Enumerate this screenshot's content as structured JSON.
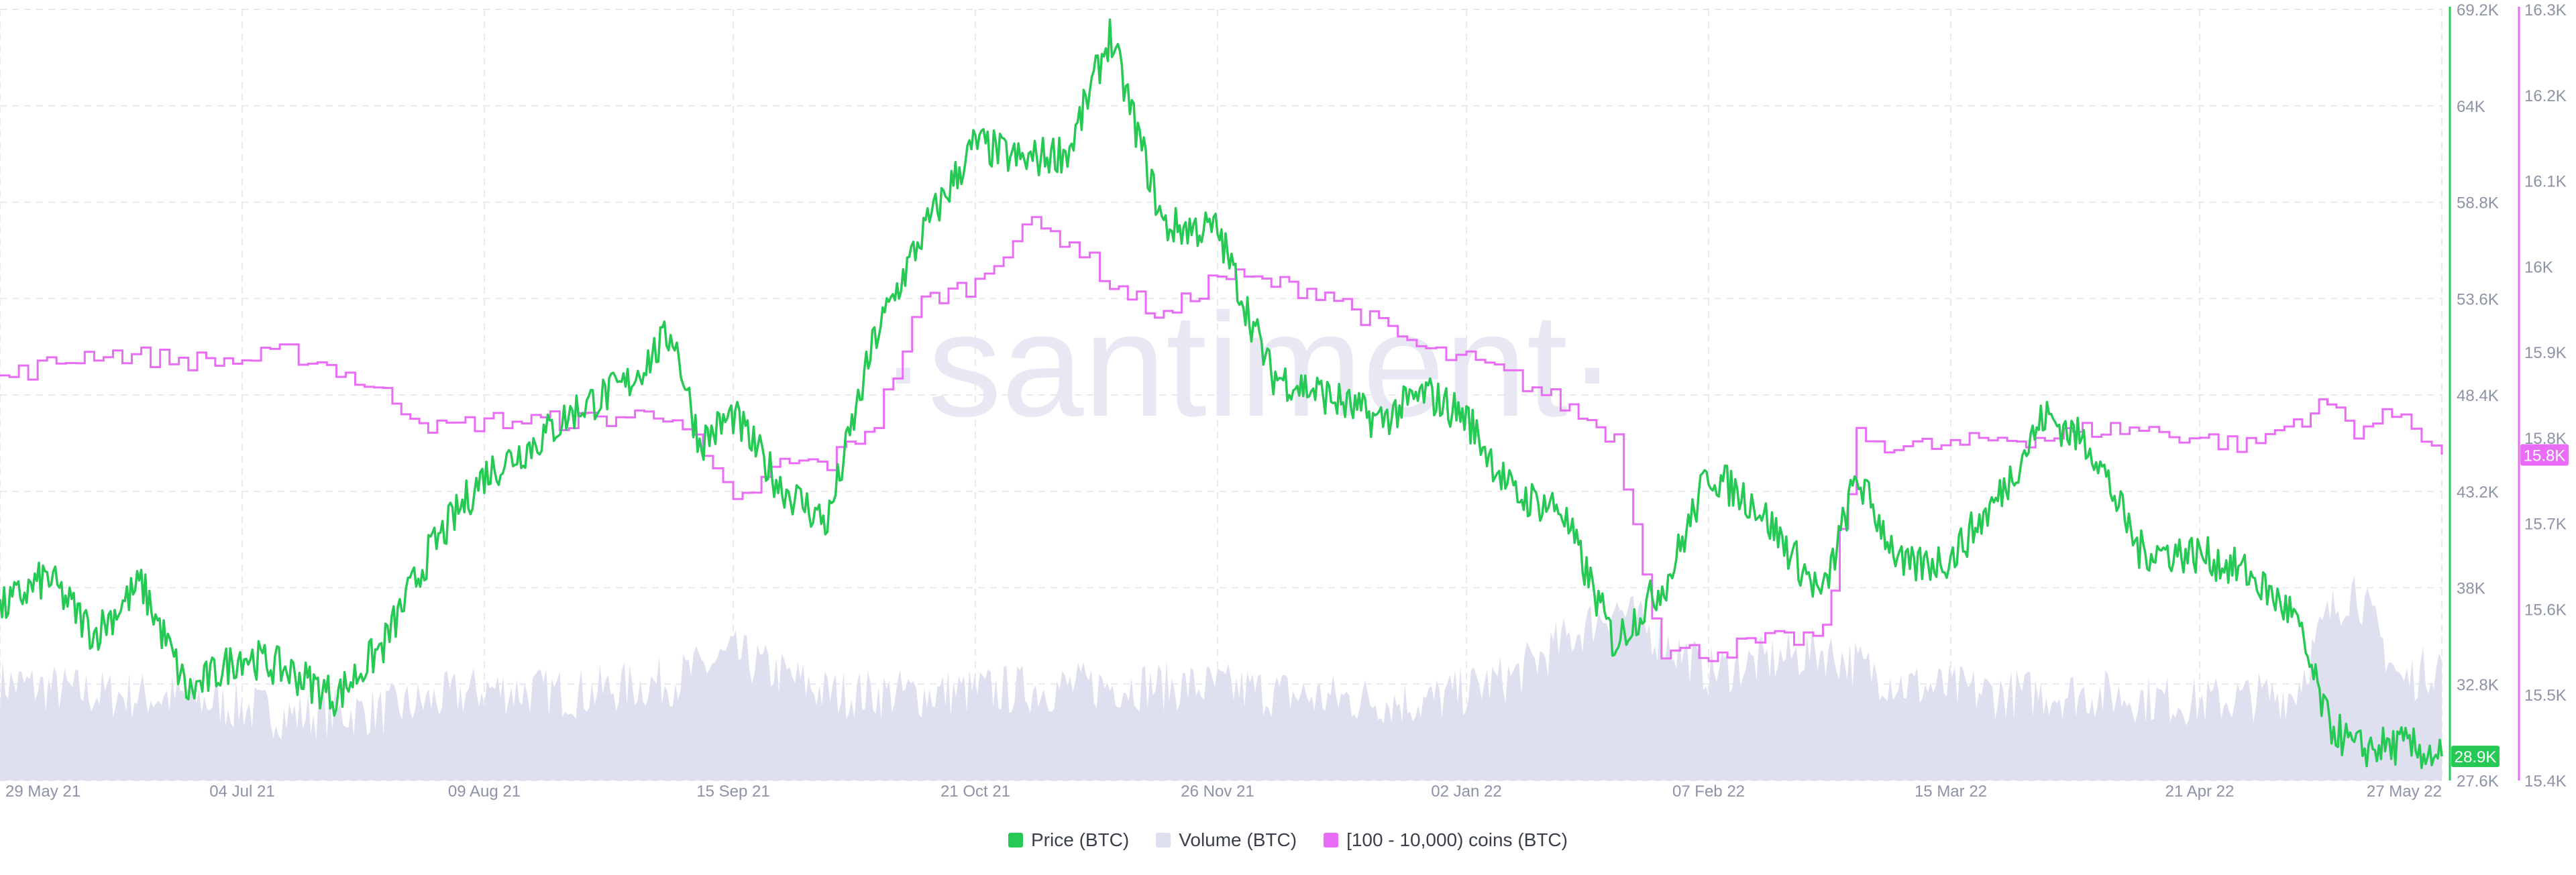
{
  "watermark": "·santiment·",
  "colors": {
    "price": "#26c953",
    "volume": "#dfe0ef",
    "holders": "#e86cf6",
    "grid": "#e9e9ef",
    "axis_text": "#8d93a6"
  },
  "legend": [
    {
      "label": "Price (BTC)",
      "color": "#26c953"
    },
    {
      "label": "Volume (BTC)",
      "color": "#dfe0ef"
    },
    {
      "label": "[100 - 10,000) coins (BTC)",
      "color": "#e86cf6"
    }
  ],
  "chart_data": {
    "type": "line",
    "x_tick_labels": [
      "29 May 21",
      "04 Jul 21",
      "09 Aug 21",
      "15 Sep 21",
      "21 Oct 21",
      "26 Nov 21",
      "02 Jan 22",
      "07 Feb 22",
      "15 Mar 22",
      "21 Apr 22",
      "27 May 22"
    ],
    "x_range": [
      "2021-05-29",
      "2022-05-27"
    ],
    "price_axis": {
      "min": 27600,
      "max": 69200,
      "ticks": [
        "27.6K",
        "32.8K",
        "38K",
        "43.2K",
        "48.4K",
        "53.6K",
        "58.8K",
        "64K",
        "69.2K"
      ],
      "current_label": "28.9K",
      "current_value": 28900
    },
    "holders_axis": {
      "min": 15.4,
      "max": 16.3,
      "ticks": [
        "15.4K",
        "15.5K",
        "15.6K",
        "15.7K",
        "15.8K",
        "15.9K",
        "16K",
        "16.1K",
        "16.2K",
        "16.3K"
      ],
      "current_label": "15.8K",
      "current_value": 15.78
    },
    "series": [
      {
        "name": "Price (BTC)",
        "axis": "left-right-1",
        "x": [
          "2021-05-29",
          "2021-06-05",
          "2021-06-12",
          "2021-06-19",
          "2021-06-26",
          "2021-07-04",
          "2021-07-11",
          "2021-07-18",
          "2021-07-25",
          "2021-08-01",
          "2021-08-09",
          "2021-08-16",
          "2021-08-23",
          "2021-08-30",
          "2021-09-06",
          "2021-09-10",
          "2021-09-15",
          "2021-09-22",
          "2021-09-29",
          "2021-10-06",
          "2021-10-13",
          "2021-10-21",
          "2021-10-28",
          "2021-11-04",
          "2021-11-10",
          "2021-11-18",
          "2021-11-26",
          "2021-12-04",
          "2021-12-12",
          "2021-12-20",
          "2021-12-27",
          "2022-01-02",
          "2022-01-09",
          "2022-01-16",
          "2022-01-24",
          "2022-02-01",
          "2022-02-07",
          "2022-02-14",
          "2022-02-24",
          "2022-03-01",
          "2022-03-08",
          "2022-03-15",
          "2022-03-22",
          "2022-03-29",
          "2022-04-05",
          "2022-04-12",
          "2022-04-21",
          "2022-04-28",
          "2022-05-05",
          "2022-05-10",
          "2022-05-14",
          "2022-05-21",
          "2022-05-27"
        ],
        "values": [
          36800,
          38600,
          35500,
          38200,
          32300,
          34400,
          33500,
          32100,
          34900,
          40000,
          44100,
          45700,
          47700,
          48900,
          51800,
          45800,
          47300,
          43500,
          41500,
          51400,
          57000,
          62000,
          61000,
          61600,
          67800,
          57500,
          57300,
          49500,
          48400,
          47000,
          48500,
          47200,
          43000,
          42300,
          35000,
          38500,
          44200,
          42500,
          37500,
          44000,
          39000,
          39600,
          42800,
          47300,
          45600,
          40000,
          39800,
          38800,
          36500,
          30800,
          29300,
          29500,
          28900
        ]
      },
      {
        "name": "Volume (BTC)",
        "axis": "hidden",
        "x": [
          "2021-05-29",
          "2021-06-12",
          "2021-06-26",
          "2021-07-11",
          "2021-07-25",
          "2021-08-09",
          "2021-08-23",
          "2021-09-06",
          "2021-09-15",
          "2021-09-29",
          "2021-10-13",
          "2021-10-28",
          "2021-11-10",
          "2021-11-26",
          "2021-12-12",
          "2021-12-27",
          "2022-01-09",
          "2022-01-24",
          "2022-02-07",
          "2022-02-24",
          "2022-03-08",
          "2022-03-22",
          "2022-04-05",
          "2022-04-21",
          "2022-05-05",
          "2022-05-10",
          "2022-05-14",
          "2022-05-21",
          "2022-05-27"
        ],
        "values": [
          0.45,
          0.4,
          0.38,
          0.3,
          0.32,
          0.42,
          0.4,
          0.46,
          0.58,
          0.4,
          0.4,
          0.42,
          0.44,
          0.43,
          0.38,
          0.36,
          0.48,
          0.8,
          0.5,
          0.6,
          0.44,
          0.4,
          0.4,
          0.36,
          0.4,
          0.75,
          0.9,
          0.45,
          0.55
        ]
      },
      {
        "name": "[100 - 10,000) coins (BTC)",
        "axis": "right-2",
        "x": [
          "2021-05-29",
          "2021-06-12",
          "2021-06-26",
          "2021-07-04",
          "2021-07-11",
          "2021-07-18",
          "2021-07-25",
          "2021-08-02",
          "2021-08-09",
          "2021-08-23",
          "2021-09-06",
          "2021-09-15",
          "2021-09-22",
          "2021-09-29",
          "2021-10-06",
          "2021-10-13",
          "2021-10-21",
          "2021-10-28",
          "2021-11-04",
          "2021-11-10",
          "2021-11-18",
          "2021-11-26",
          "2021-12-04",
          "2021-12-12",
          "2021-12-20",
          "2021-12-27",
          "2022-01-02",
          "2022-01-09",
          "2022-01-16",
          "2022-01-24",
          "2022-01-31",
          "2022-02-07",
          "2022-02-14",
          "2022-02-24",
          "2022-03-01",
          "2022-03-08",
          "2022-03-15",
          "2022-03-22",
          "2022-03-29",
          "2022-04-05",
          "2022-04-12",
          "2022-04-21",
          "2022-04-28",
          "2022-05-05",
          "2022-05-10",
          "2022-05-14",
          "2022-05-21",
          "2022-05-27"
        ],
        "values": [
          15.87,
          15.9,
          15.89,
          15.89,
          15.9,
          15.88,
          15.85,
          15.81,
          15.82,
          15.82,
          15.83,
          15.72,
          15.77,
          15.77,
          15.82,
          15.96,
          15.98,
          16.05,
          16.03,
          15.98,
          15.94,
          15.99,
          15.98,
          15.97,
          15.93,
          15.9,
          15.89,
          15.87,
          15.84,
          15.8,
          15.55,
          15.55,
          15.56,
          15.57,
          15.8,
          15.79,
          15.79,
          15.8,
          15.8,
          15.81,
          15.81,
          15.8,
          15.79,
          15.82,
          15.84,
          15.81,
          15.83,
          15.78
        ]
      }
    ],
    "grid": true,
    "legend_position": "bottom-center"
  }
}
